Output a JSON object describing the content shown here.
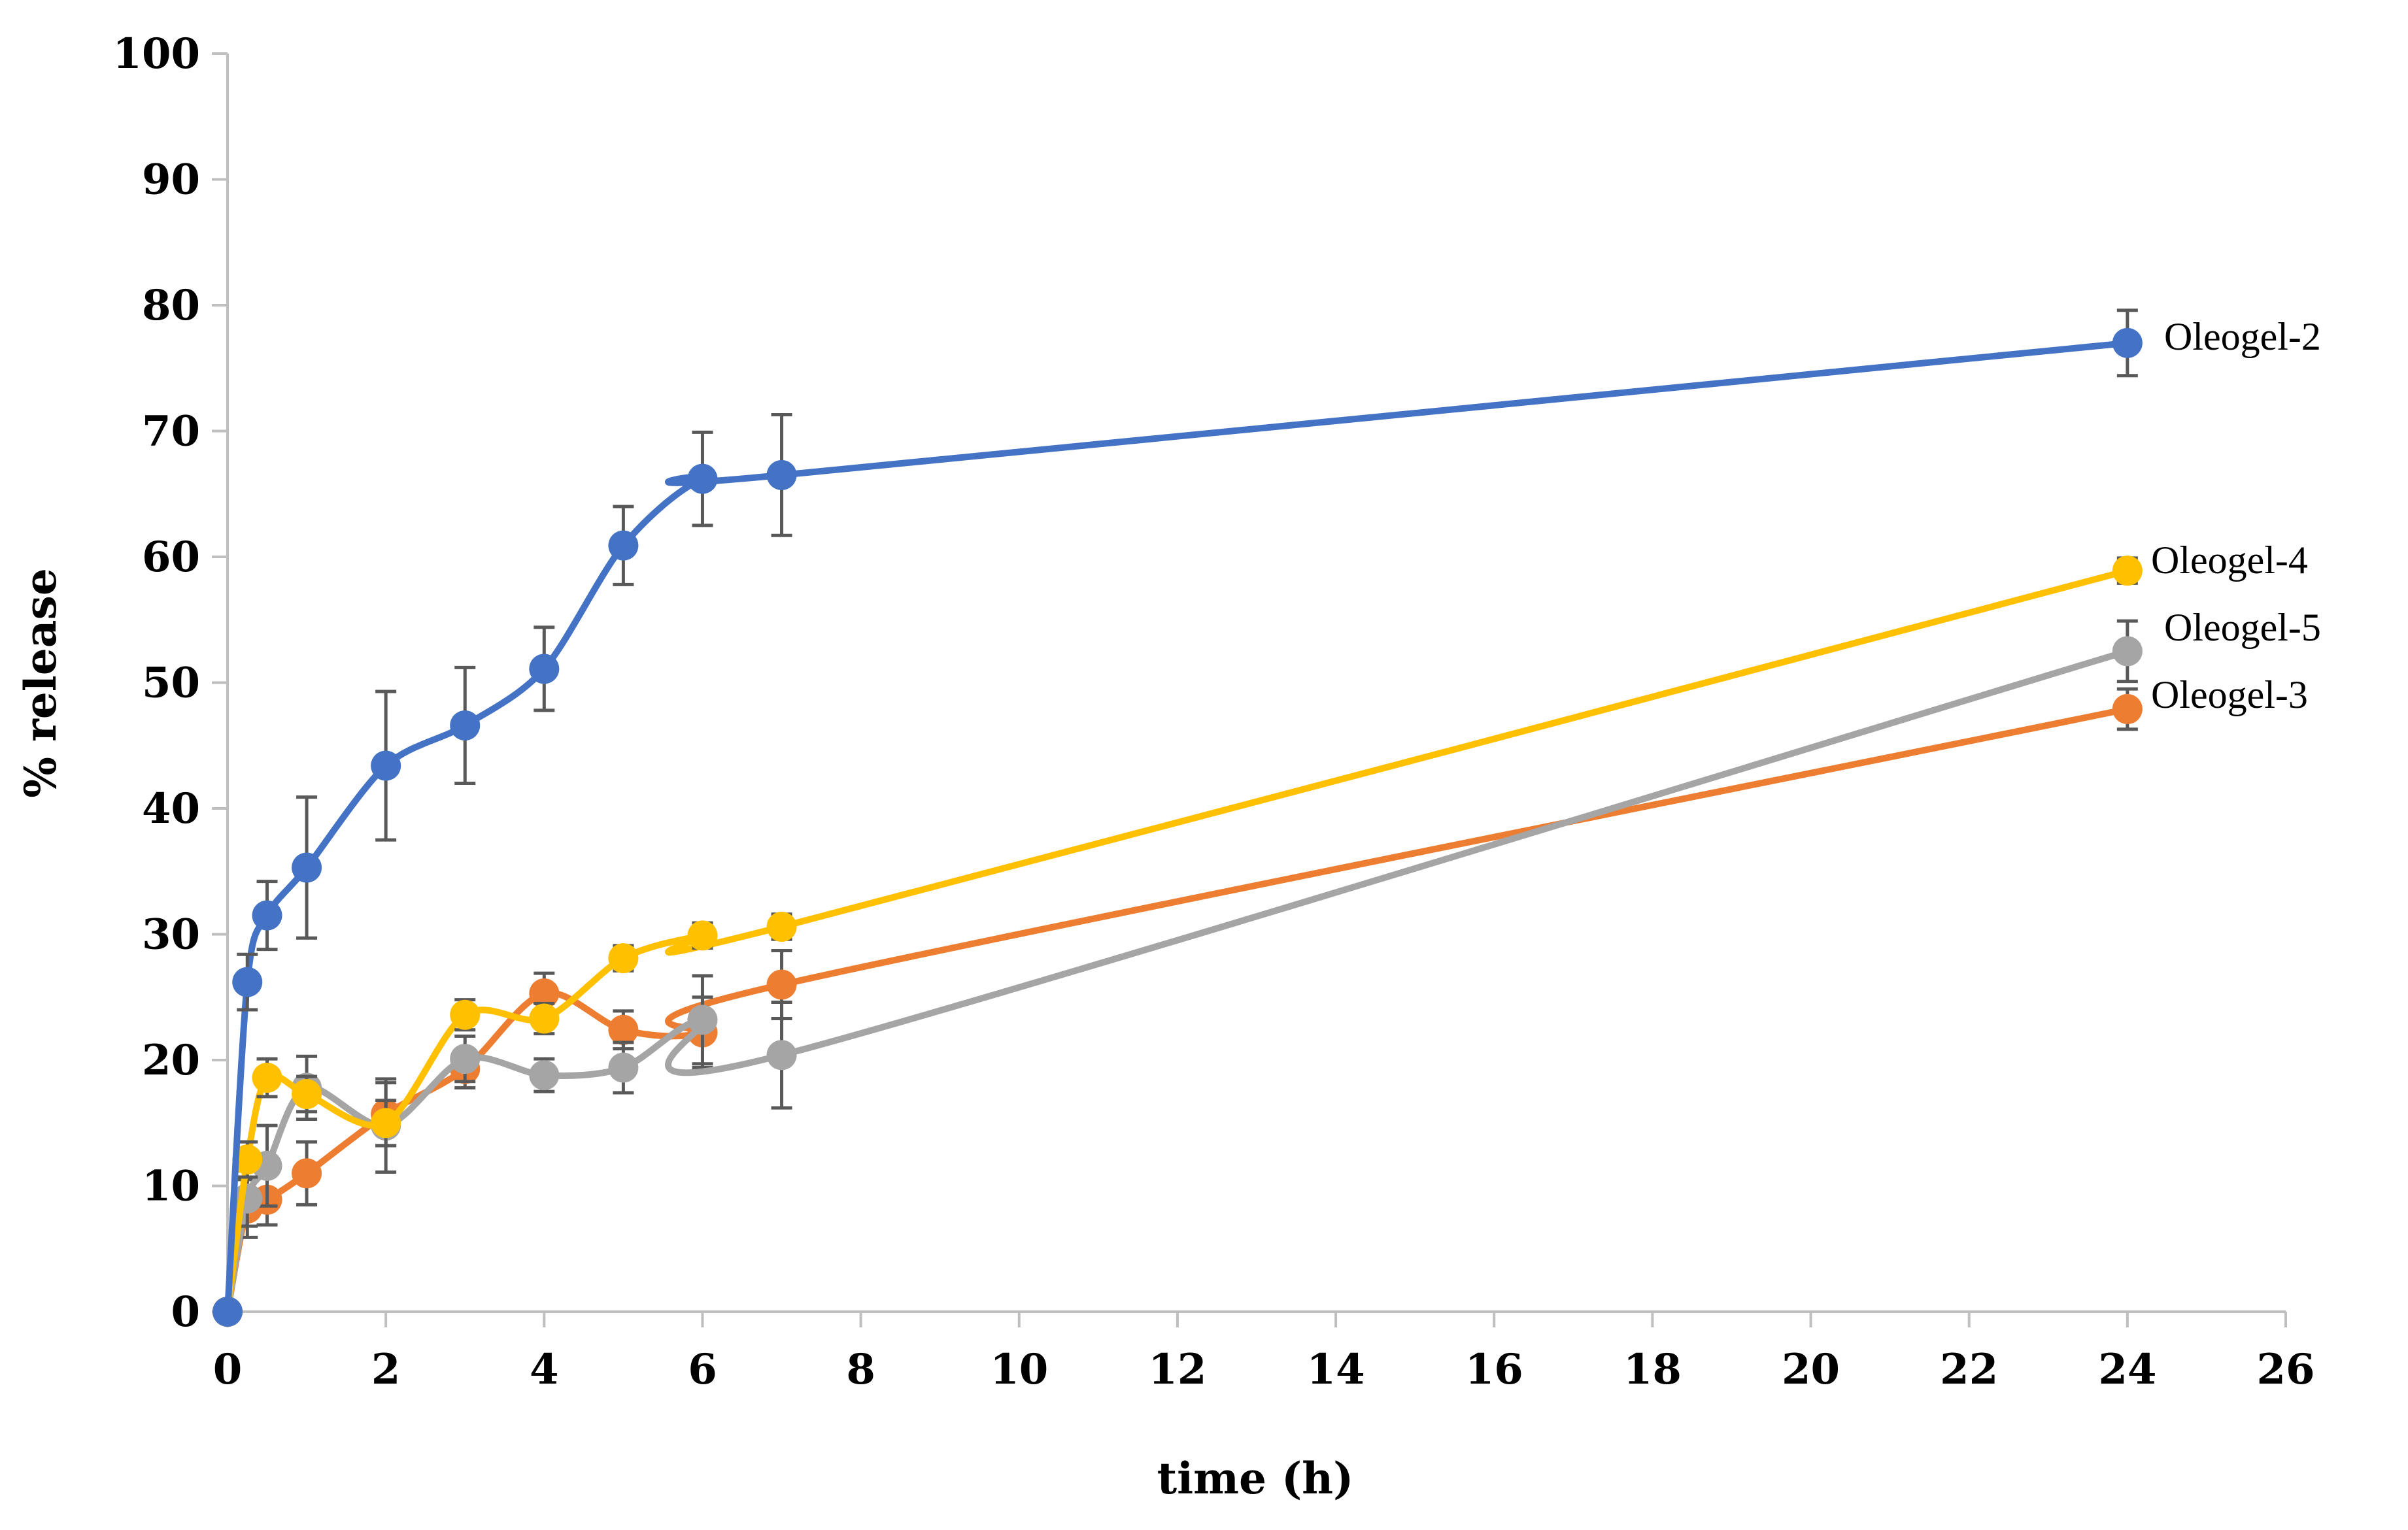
{
  "chart_data": {
    "type": "line",
    "title": "",
    "xlabel": "time (h)",
    "ylabel": "% release",
    "xlim": [
      0,
      26
    ],
    "ylim": [
      0,
      100
    ],
    "x_ticks": [
      "0",
      "2",
      "4",
      "6",
      "8",
      "10",
      "12",
      "14",
      "16",
      "18",
      "20",
      "22",
      "24",
      "26"
    ],
    "y_ticks": [
      "0",
      "10",
      "20",
      "30",
      "40",
      "50",
      "60",
      "70",
      "80",
      "90",
      "100"
    ],
    "grid": false,
    "legend_placement": "inline-right",
    "x": [
      0,
      0.25,
      0.5,
      1,
      2,
      3,
      4,
      5,
      6,
      7,
      24
    ],
    "series": [
      {
        "name": "Oleogel-2",
        "color": "#4472C4",
        "values": [
          0,
          26.2,
          31.5,
          35.3,
          43.4,
          46.6,
          51.1,
          60.9,
          66.2,
          66.5,
          77.0
        ],
        "errors": [
          0,
          2.2,
          2.7,
          5.6,
          5.9,
          4.6,
          3.3,
          3.1,
          3.7,
          4.8,
          2.6
        ]
      },
      {
        "name": "Oleogel-4",
        "color": "#FFC000",
        "values": [
          0,
          12.1,
          18.6,
          17.3,
          15.0,
          23.6,
          23.3,
          28.1,
          29.9,
          30.6,
          58.9
        ],
        "errors": [
          0,
          1.4,
          1.5,
          1.4,
          1.8,
          1.2,
          1.2,
          1.0,
          1.0,
          1.0,
          1.0
        ]
      },
      {
        "name": "Oleogel-5",
        "color": "#A5A5A5",
        "values": [
          0,
          9.0,
          11.6,
          17.8,
          14.8,
          20.1,
          18.8,
          19.4,
          23.2,
          20.4,
          52.5
        ],
        "errors": [
          0,
          2.2,
          3.2,
          2.5,
          3.7,
          1.8,
          1.3,
          2.0,
          3.5,
          4.2,
          2.4
        ]
      },
      {
        "name": "Oleogel-3",
        "color": "#ED7D31",
        "values": [
          0,
          8.2,
          8.9,
          11.0,
          15.7,
          19.3,
          25.3,
          22.4,
          22.2,
          26.0,
          47.9
        ],
        "errors": [
          0,
          2.3,
          2.0,
          2.5,
          2.5,
          1.5,
          1.6,
          1.5,
          2.8,
          2.7,
          1.6
        ]
      }
    ]
  }
}
